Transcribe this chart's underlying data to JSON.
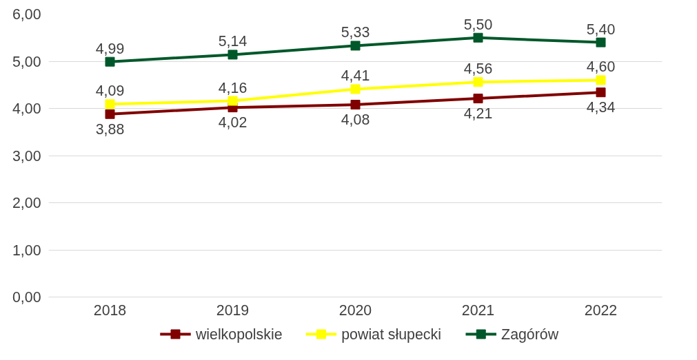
{
  "chart_data": {
    "type": "line",
    "categories": [
      "2018",
      "2019",
      "2020",
      "2021",
      "2022"
    ],
    "ylim": [
      0,
      6
    ],
    "yticks": [
      {
        "value": 0,
        "label": "0,00"
      },
      {
        "value": 1,
        "label": "1,00"
      },
      {
        "value": 2,
        "label": "2,00"
      },
      {
        "value": 3,
        "label": "3,00"
      },
      {
        "value": 4,
        "label": "4,00"
      },
      {
        "value": 5,
        "label": "5,00"
      },
      {
        "value": 6,
        "label": "6,00"
      }
    ],
    "grid": "y",
    "legend": "bottom",
    "marker": "square",
    "line_style": "solid",
    "series": [
      {
        "name": "wielkopolskie",
        "color": "#800000",
        "values": [
          3.88,
          4.02,
          4.08,
          4.21,
          4.34
        ],
        "value_labels": [
          "3,88",
          "4,02",
          "4,08",
          "4,21",
          "4,34"
        ]
      },
      {
        "name": "powiat słupecki",
        "color": "#ffff00",
        "values": [
          4.09,
          4.16,
          4.41,
          4.56,
          4.6
        ],
        "value_labels": [
          "4,09",
          "4,16",
          "4,41",
          "4,56",
          "4,60"
        ]
      },
      {
        "name": "Zagórów",
        "color": "#00582a",
        "values": [
          4.99,
          5.14,
          5.33,
          5.5,
          5.4
        ],
        "value_labels": [
          "4,99",
          "5,14",
          "5,33",
          "5,50",
          "5,40"
        ]
      }
    ]
  }
}
